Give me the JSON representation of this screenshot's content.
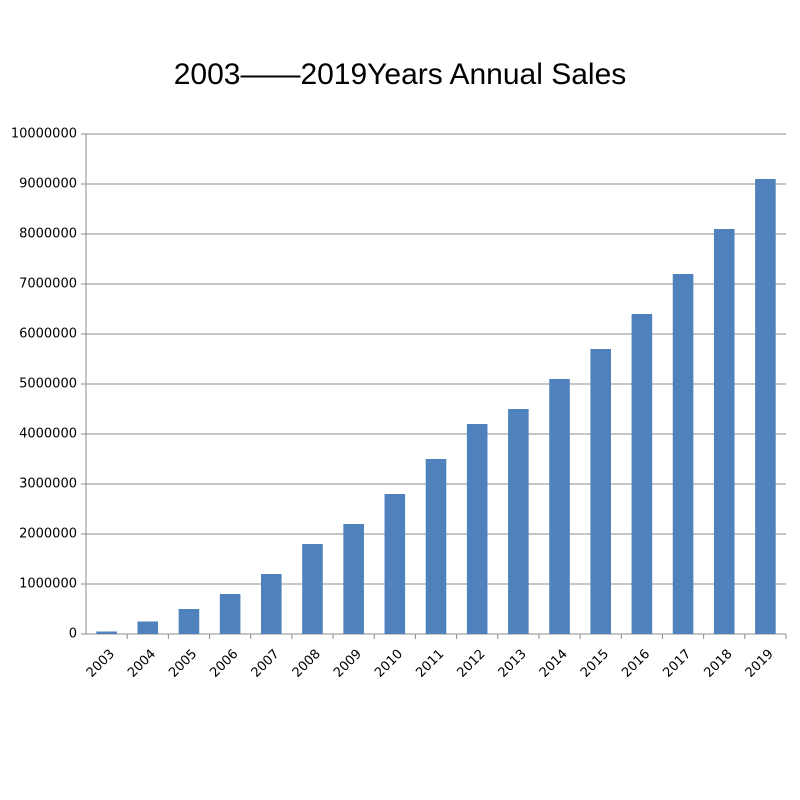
{
  "chart_data": {
    "type": "bar",
    "title": "2003——2019Years Annual Sales",
    "xlabel": "",
    "ylabel": "",
    "categories": [
      "2003",
      "2004",
      "2005",
      "2006",
      "2007",
      "2008",
      "2009",
      "2010",
      "2011",
      "2012",
      "2013",
      "2014",
      "2015",
      "2016",
      "2017",
      "2018",
      "2019"
    ],
    "values": [
      50000,
      250000,
      500000,
      800000,
      1200000,
      1800000,
      2200000,
      2800000,
      3500000,
      4200000,
      4500000,
      5100000,
      5700000,
      6400000,
      7200000,
      8100000,
      9100000
    ],
    "ylim": [
      0,
      10000000
    ],
    "yticks": [
      "0",
      "1000000",
      "2000000",
      "3000000",
      "4000000",
      "5000000",
      "6000000",
      "7000000",
      "8000000",
      "9000000",
      "10000000"
    ],
    "grid": true,
    "bar_color": "#4f81bd",
    "grid_color": "#8c8c8c"
  }
}
